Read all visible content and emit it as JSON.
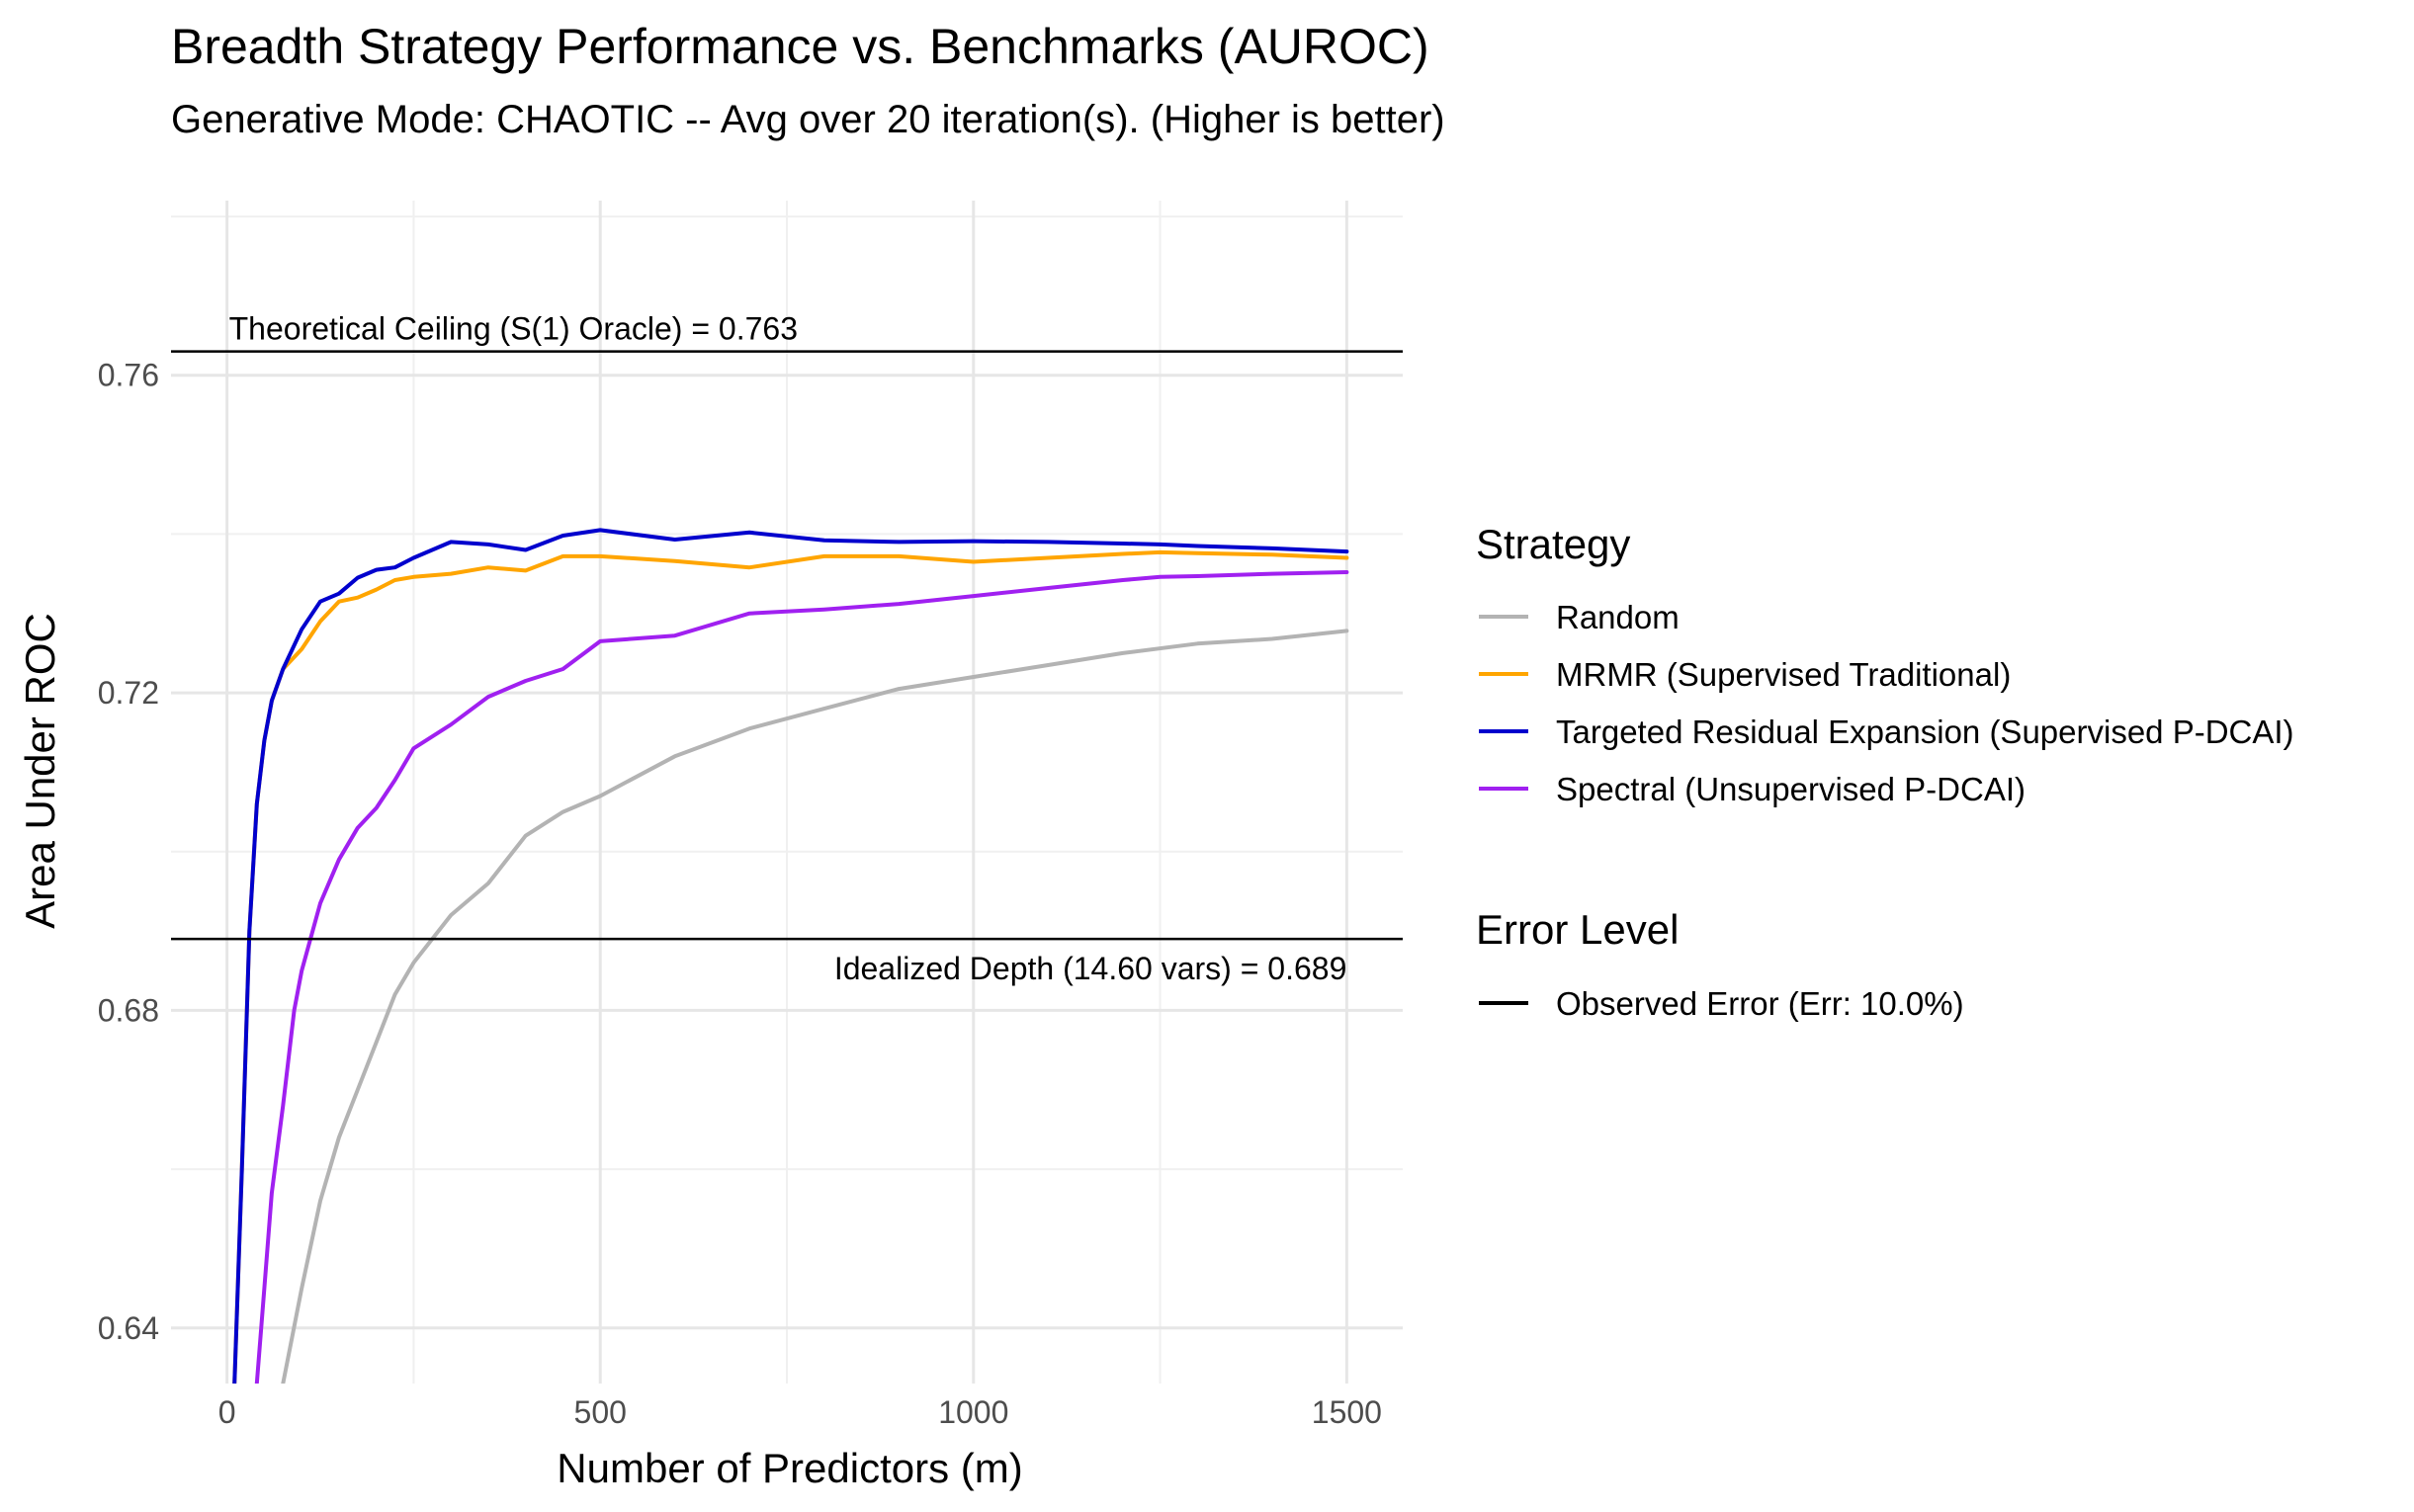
{
  "chart_data": {
    "type": "line",
    "title": "Breadth Strategy Performance vs. Benchmarks (AUROC)",
    "subtitle": "Generative Mode: CHAOTIC -- Avg over 20 iteration(s). (Higher is better)",
    "xlabel": "Number of Predictors (m)",
    "ylabel": "Area Under ROC",
    "xlim": [
      -75,
      1575
    ],
    "ylim": [
      0.633,
      0.782
    ],
    "x_ticks": [
      0,
      500,
      1000,
      1500
    ],
    "x_tick_labels": [
      "0",
      "500",
      "1000",
      "1500"
    ],
    "y_ticks": [
      0.64,
      0.68,
      0.72,
      0.76
    ],
    "y_tick_labels": [
      "0.64",
      "0.68",
      "0.72",
      "0.76"
    ],
    "grid": true,
    "legend_position": "right",
    "series": [
      {
        "name": "Random",
        "color": "#b3b3b3",
        "x": [
          75,
          100,
          125,
          150,
          175,
          200,
          225,
          250,
          300,
          350,
          400,
          450,
          500,
          600,
          700,
          800,
          900,
          1000,
          1100,
          1200,
          1300,
          1400,
          1500
        ],
        "y": [
          0.633,
          0.645,
          0.656,
          0.664,
          0.67,
          0.676,
          0.682,
          0.686,
          0.692,
          0.696,
          0.702,
          0.705,
          0.707,
          0.712,
          0.7155,
          0.718,
          0.7205,
          0.722,
          0.7235,
          0.725,
          0.7262,
          0.7268,
          0.7278
        ]
      },
      {
        "name": "MRMR (Supervised Traditional)",
        "color": "#ffa500",
        "x": [
          10,
          20,
          30,
          40,
          50,
          60,
          75,
          100,
          125,
          150,
          175,
          200,
          225,
          250,
          300,
          350,
          400,
          450,
          500,
          600,
          700,
          800,
          900,
          1000,
          1100,
          1200,
          1250,
          1300,
          1400,
          1500
        ],
        "y": [
          0.633,
          0.66,
          0.69,
          0.706,
          0.714,
          0.719,
          0.723,
          0.7255,
          0.729,
          0.7315,
          0.732,
          0.733,
          0.7342,
          0.7346,
          0.735,
          0.7358,
          0.7354,
          0.7372,
          0.7372,
          0.7366,
          0.7358,
          0.7372,
          0.7372,
          0.7365,
          0.737,
          0.7375,
          0.7377,
          0.7376,
          0.7374,
          0.737
        ]
      },
      {
        "name": "Targeted Residual Expansion (Supervised P-DCAI)",
        "color": "#0000cd",
        "x": [
          10,
          20,
          30,
          40,
          50,
          60,
          75,
          100,
          125,
          150,
          175,
          200,
          225,
          250,
          300,
          350,
          400,
          450,
          500,
          600,
          700,
          800,
          900,
          1000,
          1100,
          1200,
          1250,
          1300,
          1400,
          1500
        ],
        "y": [
          0.633,
          0.66,
          0.69,
          0.706,
          0.714,
          0.719,
          0.723,
          0.728,
          0.7315,
          0.7325,
          0.7345,
          0.7355,
          0.7358,
          0.737,
          0.739,
          0.7387,
          0.738,
          0.7398,
          0.7405,
          0.7393,
          0.7402,
          0.7392,
          0.739,
          0.7391,
          0.739,
          0.7388,
          0.7387,
          0.7385,
          0.7382,
          0.7378
        ]
      },
      {
        "name": "Spectral (Unsupervised P-DCAI)",
        "color": "#a020f0",
        "x": [
          40,
          50,
          60,
          75,
          90,
          100,
          125,
          150,
          175,
          200,
          225,
          250,
          300,
          350,
          400,
          450,
          500,
          600,
          700,
          800,
          900,
          1000,
          1100,
          1200,
          1250,
          1300,
          1400,
          1500
        ],
        "y": [
          0.633,
          0.645,
          0.657,
          0.668,
          0.68,
          0.685,
          0.6935,
          0.699,
          0.703,
          0.7055,
          0.709,
          0.713,
          0.716,
          0.7195,
          0.7215,
          0.723,
          0.7265,
          0.7272,
          0.73,
          0.7305,
          0.7312,
          0.7322,
          0.7332,
          0.7342,
          0.7346,
          0.7347,
          0.735,
          0.7352
        ]
      }
    ],
    "reference_lines": [
      {
        "y": 0.763,
        "label": "Theoretical Ceiling (S(1) Oracle) = 0.763",
        "label_align": "left"
      },
      {
        "y": 0.689,
        "label": "Idealized Depth (14.60 vars) = 0.689",
        "label_align": "right"
      }
    ],
    "legends": [
      {
        "title": "Strategy",
        "entries": [
          {
            "label": "Random",
            "color": "#b3b3b3"
          },
          {
            "label": "MRMR (Supervised Traditional)",
            "color": "#ffa500"
          },
          {
            "label": "Targeted Residual Expansion (Supervised P-DCAI)",
            "color": "#0000cd"
          },
          {
            "label": "Spectral (Unsupervised P-DCAI)",
            "color": "#a020f0"
          }
        ]
      },
      {
        "title": "Error Level",
        "entries": [
          {
            "label": "Observed Error (Err: 10.0%)",
            "color": "#000000"
          }
        ]
      }
    ]
  }
}
